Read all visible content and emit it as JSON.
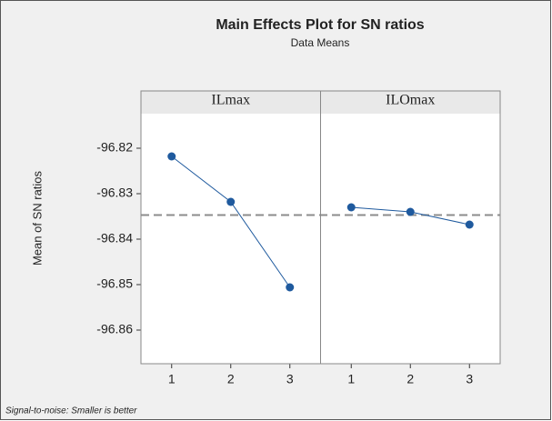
{
  "chart_data": {
    "type": "line",
    "title": "Main Effects Plot for SN ratios",
    "subtitle": "Data Means",
    "y_label": "Mean of SN ratios",
    "footnote": "Signal-to-noise: Smaller is better",
    "panels": [
      {
        "name": "ILmax",
        "categories": [
          "1",
          "2",
          "3"
        ],
        "values": [
          -96.8218,
          -96.8318,
          -96.8506
        ]
      },
      {
        "name": "ILOmax",
        "categories": [
          "1",
          "2",
          "3"
        ],
        "values": [
          -96.833,
          -96.834,
          -96.8368
        ]
      }
    ],
    "ylim": [
      -96.8674,
      -96.8124
    ],
    "yticks": [
      -96.82,
      -96.83,
      -96.84,
      -96.85,
      -96.86
    ],
    "reference_line": -96.8347,
    "color": "#1f5a9e",
    "reference_color": "#8c8c8c"
  }
}
